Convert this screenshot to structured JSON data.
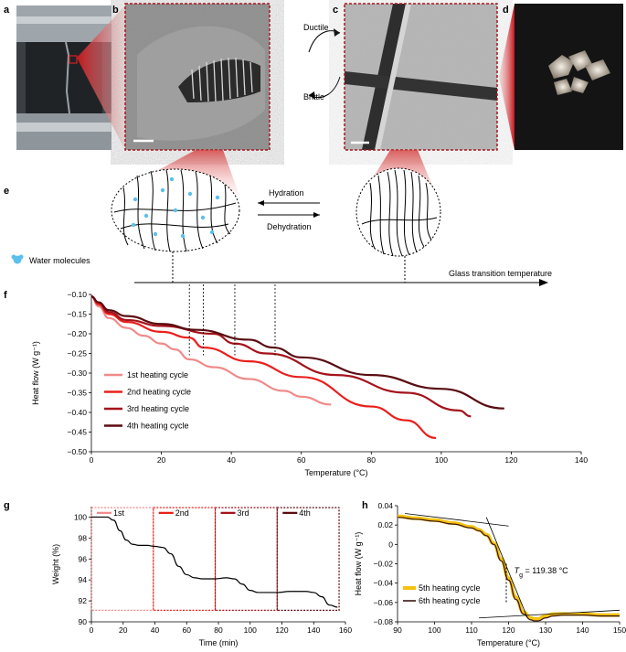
{
  "panel_labels": {
    "a": "a",
    "b": "b",
    "c": "c",
    "d": "d",
    "e": "e",
    "f": "f",
    "g": "g",
    "h": "h"
  },
  "transitions": {
    "top_arrow": "Ductile",
    "bottom_arrow": "Brittle"
  },
  "schematic": {
    "hydration": "Hydration",
    "dehydration": "Dehydration",
    "water_legend": "Water molecules",
    "axis_label": "Glass transition temperature"
  },
  "colors": {
    "cycle1": "#f08a8a",
    "cycle2": "#e8201c",
    "cycle3": "#a5121b",
    "cycle4": "#5a0c12",
    "cycle5": "#f5c211",
    "cycle6": "#3b1510",
    "water": "#5bc0eb"
  },
  "chart_data": [
    {
      "id": "f",
      "type": "line",
      "title": "",
      "xlabel": "Temperature (°C)",
      "ylabel": "Heat flow (W g⁻¹)",
      "xlim": [
        0,
        140
      ],
      "ylim": [
        -0.5,
        -0.1
      ],
      "xticks": [
        "0",
        "20",
        "40",
        "60",
        "80",
        "100",
        "120",
        "140"
      ],
      "yticks": [
        "-0.10",
        "-0.15",
        "-0.20",
        "-0.25",
        "-0.30",
        "-0.35",
        "-0.40",
        "-0.45",
        "-0.50"
      ],
      "series": [
        {
          "name": "1st heating cycle",
          "x": [
            0,
            2,
            5,
            10,
            15,
            20,
            24,
            28,
            35,
            45,
            55,
            60,
            68.5
          ],
          "y": [
            -0.105,
            -0.13,
            -0.16,
            -0.185,
            -0.205,
            -0.225,
            -0.24,
            -0.265,
            -0.285,
            -0.315,
            -0.345,
            -0.36,
            -0.38
          ]
        },
        {
          "name": "2nd heating cycle",
          "x": [
            0,
            2,
            5,
            10,
            20,
            28,
            32,
            45,
            60,
            80,
            90,
            98.5
          ],
          "y": [
            -0.105,
            -0.125,
            -0.15,
            -0.17,
            -0.195,
            -0.21,
            -0.235,
            -0.27,
            -0.31,
            -0.385,
            -0.42,
            -0.465
          ]
        },
        {
          "name": "3rd heating cycle",
          "x": [
            0,
            2,
            5,
            10,
            20,
            35,
            41,
            50,
            70,
            90,
            105,
            108.5
          ],
          "y": [
            -0.105,
            -0.12,
            -0.145,
            -0.165,
            -0.18,
            -0.2,
            -0.225,
            -0.25,
            -0.305,
            -0.35,
            -0.395,
            -0.41
          ]
        },
        {
          "name": "4th heating cycle",
          "x": [
            0,
            2,
            5,
            10,
            20,
            30,
            45,
            52,
            60,
            80,
            100,
            118
          ],
          "y": [
            -0.105,
            -0.12,
            -0.14,
            -0.155,
            -0.175,
            -0.19,
            -0.215,
            -0.235,
            -0.26,
            -0.305,
            -0.34,
            -0.39
          ]
        }
      ],
      "annotations": {
        "tg_markers": [
          28,
          32,
          41,
          52.5
        ]
      }
    },
    {
      "id": "g",
      "type": "line",
      "title": "",
      "xlabel": "Time (min)",
      "ylabel": "Weight (%)",
      "xlim": [
        0,
        160
      ],
      "ylim": [
        90,
        101
      ],
      "xticks": [
        "0",
        "20",
        "40",
        "60",
        "80",
        "100",
        "120",
        "140",
        "160"
      ],
      "yticks": [
        "90",
        "92",
        "94",
        "96",
        "98",
        "100"
      ],
      "series": [
        {
          "name": "Weight",
          "x": [
            0,
            10,
            14,
            18,
            22,
            26,
            30,
            35,
            40,
            45,
            50,
            55,
            60,
            65,
            70,
            78,
            85,
            90,
            95,
            100,
            105,
            110,
            117,
            125,
            130,
            135,
            140,
            145,
            150,
            155
          ],
          "y": [
            100.0,
            100.0,
            99.7,
            98.7,
            97.8,
            97.4,
            97.3,
            97.3,
            97.2,
            97.1,
            96.5,
            95.3,
            94.5,
            94.2,
            94.1,
            94.1,
            94.2,
            94.1,
            93.6,
            93.0,
            92.8,
            92.8,
            92.8,
            92.9,
            92.9,
            92.9,
            92.8,
            92.4,
            91.6,
            91.4
          ]
        }
      ],
      "windows": [
        {
          "label": "1st",
          "x0": 0,
          "x1": 39,
          "color": "#f08a8a"
        },
        {
          "label": "2nd",
          "x0": 39,
          "x1": 78,
          "color": "#e8201c"
        },
        {
          "label": "3rd",
          "x0": 78,
          "x1": 117,
          "color": "#a5121b"
        },
        {
          "label": "4th",
          "x0": 117,
          "x1": 156,
          "color": "#5a0c12"
        }
      ]
    },
    {
      "id": "h",
      "type": "line",
      "title": "",
      "xlabel": "Temperature (°C)",
      "ylabel": "Heat flow (W g⁻¹)",
      "xlim": [
        90,
        150
      ],
      "ylim": [
        -0.08,
        0.04
      ],
      "xticks": [
        "90",
        "100",
        "110",
        "120",
        "130",
        "140",
        "150"
      ],
      "yticks": [
        "0.04",
        "0.02",
        "0",
        "-0.02",
        "-0.04",
        "-0.06",
        "-0.08"
      ],
      "series": [
        {
          "name": "5th heating cycle",
          "x": [
            90,
            95,
            100,
            105,
            110,
            112,
            114,
            116,
            118,
            120,
            122,
            124,
            126,
            127,
            128,
            130,
            132,
            135,
            140,
            145,
            150
          ],
          "y": [
            0.029,
            0.027,
            0.025,
            0.022,
            0.018,
            0.015,
            0.01,
            0.001,
            -0.015,
            -0.035,
            -0.055,
            -0.07,
            -0.076,
            -0.077,
            -0.077,
            -0.074,
            -0.072,
            -0.072,
            -0.072,
            -0.073,
            -0.073
          ]
        },
        {
          "name": "6th heating cycle",
          "x": [
            90,
            95,
            100,
            105,
            110,
            112,
            114,
            116,
            118,
            120,
            122,
            124,
            126,
            127,
            128,
            130,
            132,
            135,
            140,
            145,
            150
          ],
          "y": [
            0.028,
            0.026,
            0.024,
            0.021,
            0.017,
            0.014,
            0.009,
            0.0,
            -0.017,
            -0.037,
            -0.057,
            -0.072,
            -0.078,
            -0.079,
            -0.079,
            -0.076,
            -0.074,
            -0.073,
            -0.073,
            -0.074,
            -0.074
          ]
        }
      ],
      "annotation": {
        "tg_symbol": "T",
        "tg_sub": "g",
        "tg_text": " = 119.38 °C",
        "tg_value": 119.38
      }
    }
  ]
}
